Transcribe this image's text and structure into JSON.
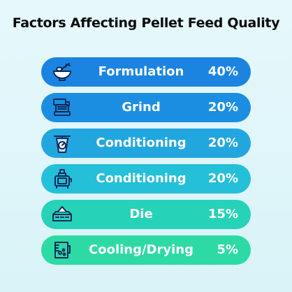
{
  "title": "Factors Affecting Pellet Feed Quality",
  "chart_data": {
    "type": "table",
    "title": "Factors Affecting Pellet Feed Quality",
    "categories": [
      "Formulation",
      "Grind",
      "Conditioning",
      "Conditioning",
      "Die",
      "Cooling/Drying"
    ],
    "values": [
      40,
      20,
      20,
      20,
      15,
      5
    ],
    "value_labels": [
      "40%",
      "20%",
      "20%",
      "20%",
      "15%",
      "5%"
    ],
    "rows": [
      {
        "label": "Formulation",
        "value": 40,
        "value_label": "40%",
        "color": "#1a84e0",
        "icon": "mixing-bowl-icon"
      },
      {
        "label": "Grind",
        "value": 20,
        "value_label": "20%",
        "color": "#1b8ee2",
        "icon": "grinder-machine-icon"
      },
      {
        "label": "Conditioning",
        "value": 20,
        "value_label": "20%",
        "color": "#22a6e0",
        "icon": "scale-icon"
      },
      {
        "label": "Conditioning",
        "value": 20,
        "value_label": "20%",
        "color": "#24bfd8",
        "icon": "pellet-mill-icon"
      },
      {
        "label": "Die",
        "value": 15,
        "value_label": "15%",
        "color": "#26d3b8",
        "icon": "die-icon"
      },
      {
        "label": "Cooling/Drying",
        "value": 5,
        "value_label": "5%",
        "color": "#2ddaa5",
        "icon": "measuring-cup-icon"
      }
    ]
  }
}
